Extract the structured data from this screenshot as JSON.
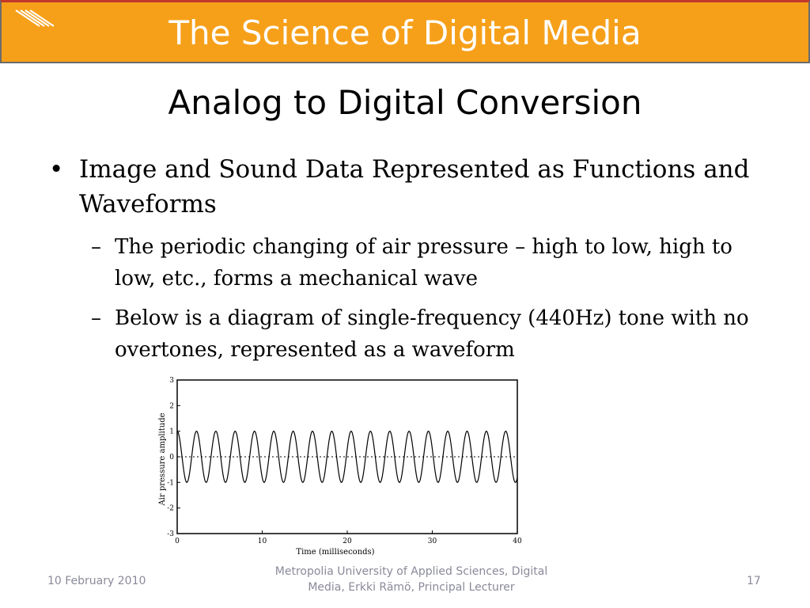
{
  "banner": {
    "title": "The Science of Digital Media"
  },
  "slide": {
    "title": "Analog to Digital Conversion"
  },
  "bullets": {
    "level1": "Image and Sound Data Represented as Functions and Waveforms",
    "sub": [
      "The periodic changing of air pressure – high to low, high to low, etc.,  forms a mechanical wave",
      "Below is a diagram of single-frequency (440Hz) tone with no overtones, represented as a waveform"
    ]
  },
  "chart_data": {
    "type": "line",
    "xlabel": "Time (milliseconds)",
    "ylabel": "Air pressure amplitude",
    "xlim": [
      0,
      40
    ],
    "ylim": [
      -3,
      3
    ],
    "x_ticks": [
      "0",
      "10",
      "20",
      "30",
      "40"
    ],
    "y_ticks": [
      "3",
      "2",
      "1",
      "0",
      "-1",
      "-2",
      "-3"
    ],
    "reference_line": {
      "y": 0,
      "style": "dotted"
    },
    "series": [
      {
        "function": "cos",
        "amplitude": 1,
        "frequency_hz": 440,
        "x_range_ms": [
          0,
          40
        ]
      }
    ]
  },
  "footer": {
    "date": "10 February 2010",
    "middle_line1": "Metropolia University of Applied Sciences,  Digital",
    "middle_line2": "Media, Erkki Rämö, Principal Lecturer",
    "page": "17"
  }
}
